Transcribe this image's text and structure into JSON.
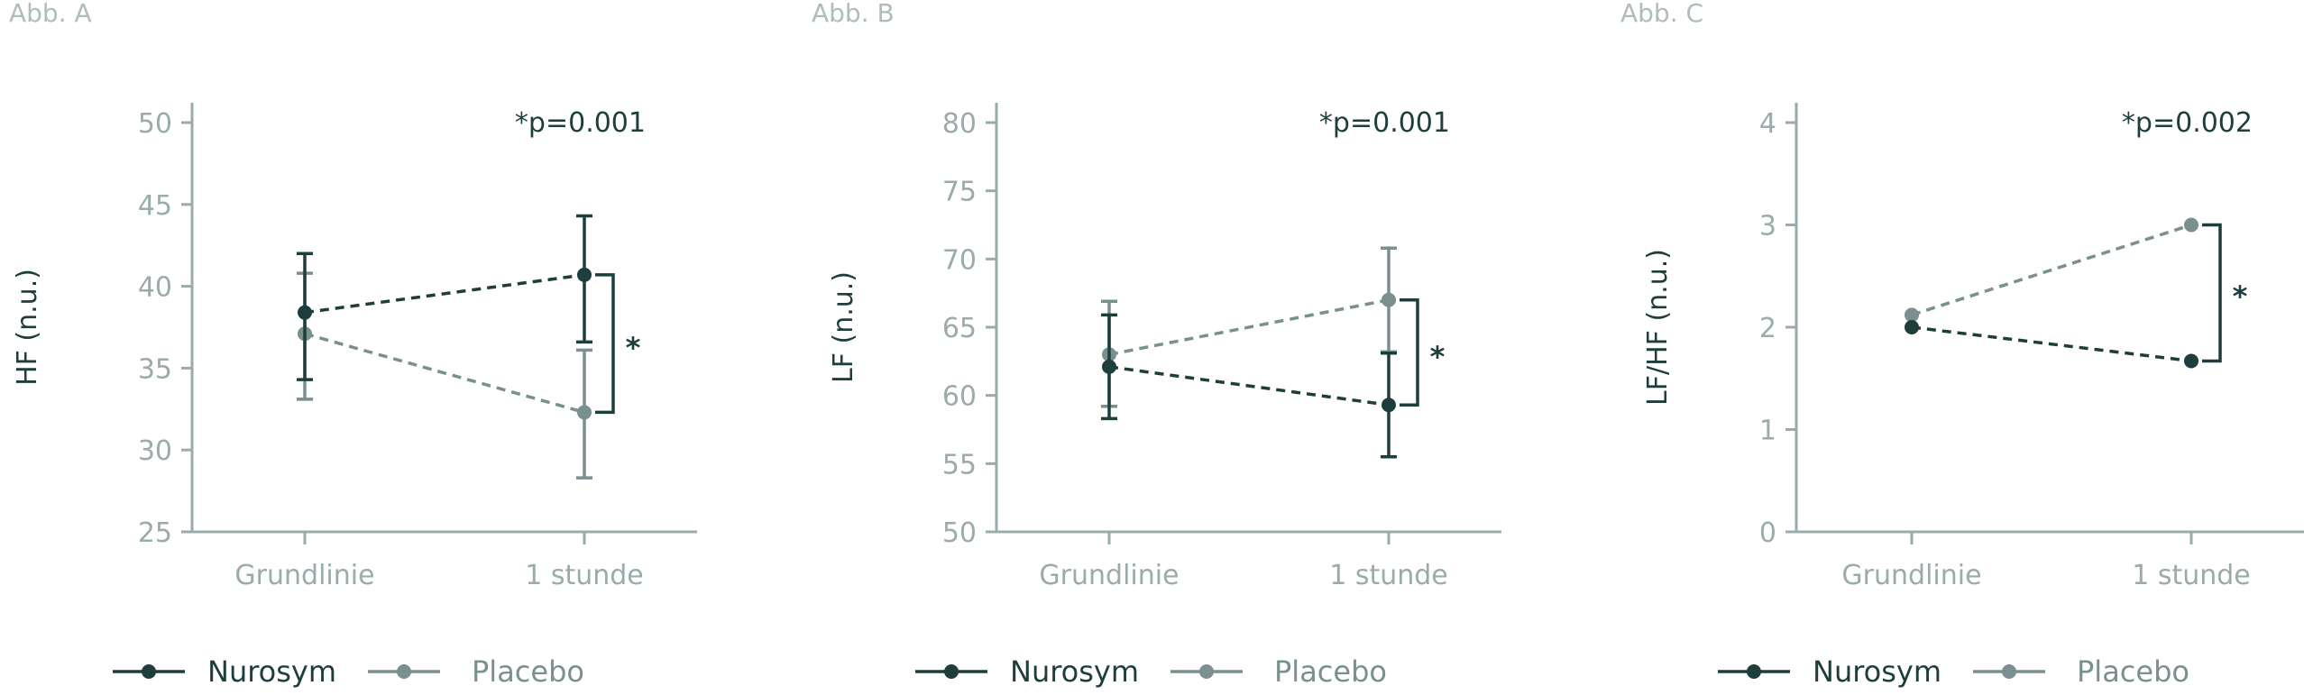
{
  "colors": {
    "nurosym": "#1e3d3d",
    "placebo": "#7a8f8f",
    "axis": "#9aabab",
    "tick_text": "#9aabab",
    "annotation": "#1e3d3d"
  },
  "legend": {
    "nurosym": "Nurosym",
    "placebo": "Placebo"
  },
  "chart_data": [
    {
      "type": "line",
      "panel_label": "Abb. A",
      "ylabel": "HF (n.u.)",
      "ylim": [
        25,
        50
      ],
      "yticks": [
        25,
        30,
        35,
        40,
        45,
        50
      ],
      "categories": [
        "Grundlinie",
        "1 stunde"
      ],
      "series": [
        {
          "name": "Nurosym",
          "values": [
            38.4,
            40.7
          ],
          "err_low": [
            34.3,
            36.6
          ],
          "err_high": [
            42.0,
            44.3
          ]
        },
        {
          "name": "Placebo",
          "values": [
            37.1,
            32.3
          ],
          "err_low": [
            33.1,
            28.3
          ],
          "err_high": [
            40.8,
            36.1
          ]
        }
      ],
      "annotation": "*p=0.001",
      "significance_marker": "*"
    },
    {
      "type": "line",
      "panel_label": "Abb. B",
      "ylabel": "LF (n.u.)",
      "ylim": [
        50,
        80
      ],
      "yticks": [
        50,
        55,
        60,
        65,
        70,
        75,
        80
      ],
      "categories": [
        "Grundlinie",
        "1 stunde"
      ],
      "series": [
        {
          "name": "Nurosym",
          "values": [
            62.1,
            59.3
          ],
          "err_low": [
            58.3,
            55.5
          ],
          "err_high": [
            65.9,
            63.1
          ]
        },
        {
          "name": "Placebo",
          "values": [
            63.0,
            67.0
          ],
          "err_low": [
            59.2,
            63.2
          ],
          "err_high": [
            66.9,
            70.8
          ]
        }
      ],
      "annotation": "*p=0.001",
      "significance_marker": "*"
    },
    {
      "type": "line",
      "panel_label": "Abb. C",
      "ylabel": "LF/HF (n.u.)",
      "ylim": [
        0,
        4
      ],
      "yticks": [
        0,
        1,
        2,
        3,
        4
      ],
      "categories": [
        "Grundlinie",
        "1 stunde"
      ],
      "series": [
        {
          "name": "Nurosym",
          "values": [
            2.0,
            1.67
          ]
        },
        {
          "name": "Placebo",
          "values": [
            2.12,
            3.0
          ]
        }
      ],
      "annotation": "*p=0.002",
      "significance_marker": "*"
    }
  ]
}
